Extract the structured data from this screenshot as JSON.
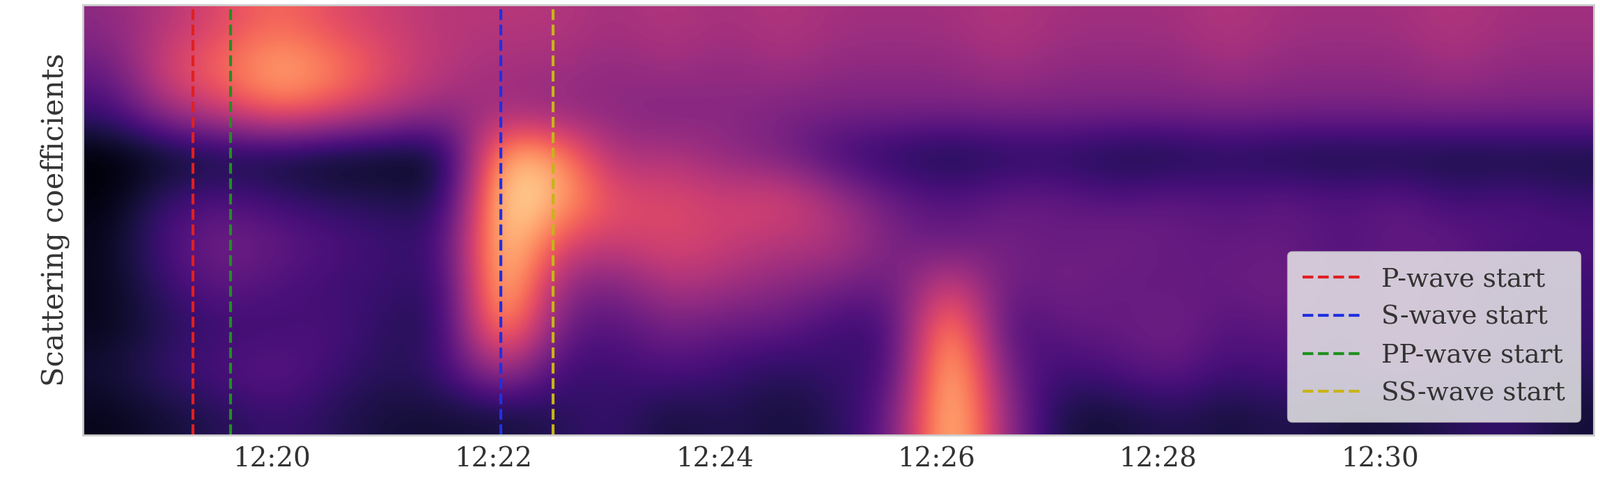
{
  "chart_data": {
    "type": "heatmap",
    "y_label": "Scattering coefficients",
    "tick_labels": "x",
    "color": "magma",
    "legend": "lower right",
    "xlim": [
      738.3,
      751.93
    ],
    "xticks": [
      {
        "value": 740,
        "label": "12:20"
      },
      {
        "value": 742,
        "label": "12:22"
      },
      {
        "value": 744,
        "label": "12:24"
      },
      {
        "value": 746,
        "label": "12:26"
      },
      {
        "value": 748,
        "label": "12:28"
      },
      {
        "value": 750,
        "label": "12:30"
      }
    ],
    "cells": [
      [
        0.05,
        0.1,
        0.15,
        0.2,
        0.15,
        0.1,
        0.1,
        0.1,
        0.15,
        0.2,
        0.1,
        0.15,
        0.1,
        0.15,
        0.3,
        1.0,
        0.4,
        0.1,
        0.1,
        0.15,
        0.1,
        0.15,
        0.1,
        0.1,
        0.15,
        0.2,
        0.1
      ],
      [
        0.1,
        0.2,
        0.25,
        0.3,
        0.2,
        0.15,
        0.2,
        0.5,
        0.2,
        0.2,
        0.25,
        0.2,
        0.15,
        0.2,
        0.2,
        1.0,
        0.3,
        0.2,
        0.25,
        0.3,
        0.2,
        0.25,
        0.2,
        0.3,
        0.2,
        0.2,
        0.15
      ],
      [
        0.05,
        0.15,
        0.2,
        0.2,
        0.25,
        0.15,
        0.15,
        0.9,
        0.3,
        0.25,
        0.35,
        0.3,
        0.3,
        0.2,
        0.2,
        0.9,
        0.2,
        0.3,
        0.3,
        0.35,
        0.25,
        0.3,
        0.2,
        0.3,
        0.25,
        0.2,
        0.2
      ],
      [
        0.05,
        0.2,
        0.3,
        0.25,
        0.2,
        0.2,
        0.15,
        1.0,
        0.4,
        0.35,
        0.5,
        0.45,
        0.4,
        0.35,
        0.3,
        0.6,
        0.3,
        0.35,
        0.3,
        0.3,
        0.3,
        0.35,
        0.25,
        0.3,
        0.25,
        0.2,
        0.2
      ],
      [
        0.05,
        0.25,
        0.35,
        0.3,
        0.25,
        0.2,
        0.2,
        1.0,
        0.6,
        0.55,
        0.6,
        0.55,
        0.5,
        0.5,
        0.35,
        0.3,
        0.35,
        0.3,
        0.35,
        0.3,
        0.3,
        0.3,
        0.25,
        0.3,
        0.3,
        0.25,
        0.25
      ],
      [
        0.02,
        0.2,
        0.25,
        0.2,
        0.15,
        0.15,
        0.1,
        1.0,
        0.85,
        0.6,
        0.6,
        0.55,
        0.6,
        0.45,
        0.3,
        0.25,
        0.3,
        0.3,
        0.25,
        0.3,
        0.25,
        0.3,
        0.25,
        0.3,
        0.2,
        0.25,
        0.2
      ],
      [
        0.0,
        0.05,
        0.1,
        0.08,
        0.05,
        0.05,
        0.05,
        0.9,
        0.8,
        0.45,
        0.5,
        0.4,
        0.35,
        0.2,
        0.15,
        0.1,
        0.15,
        0.15,
        0.1,
        0.1,
        0.15,
        0.1,
        0.1,
        0.1,
        0.1,
        0.1,
        0.1
      ],
      [
        0.2,
        0.45,
        0.55,
        0.7,
        0.6,
        0.5,
        0.4,
        0.45,
        0.4,
        0.4,
        0.35,
        0.4,
        0.35,
        0.35,
        0.35,
        0.35,
        0.35,
        0.35,
        0.35,
        0.35,
        0.35,
        0.35,
        0.35,
        0.35,
        0.35,
        0.35,
        0.35
      ],
      [
        0.3,
        0.6,
        0.7,
        0.85,
        0.75,
        0.6,
        0.5,
        0.45,
        0.45,
        0.4,
        0.45,
        0.4,
        0.45,
        0.4,
        0.4,
        0.4,
        0.45,
        0.4,
        0.4,
        0.4,
        0.45,
        0.4,
        0.4,
        0.4,
        0.45,
        0.4,
        0.4
      ],
      [
        0.4,
        0.5,
        0.6,
        0.7,
        0.6,
        0.55,
        0.5,
        0.5,
        0.5,
        0.45,
        0.5,
        0.45,
        0.5,
        0.45,
        0.45,
        0.45,
        0.5,
        0.45,
        0.45,
        0.45,
        0.5,
        0.45,
        0.45,
        0.45,
        0.5,
        0.45,
        0.45
      ]
    ],
    "series": [
      {
        "name": "P-wave start",
        "x": 739.29,
        "color": "#e02020",
        "line_style": "dashed"
      },
      {
        "name": "S-wave start",
        "x": 742.07,
        "color": "#2030e0",
        "line_style": "dashed"
      },
      {
        "name": "PP-wave start",
        "x": 739.63,
        "color": "#209020",
        "line_style": "dashed"
      },
      {
        "name": "SS-wave start",
        "x": 742.54,
        "color": "#c8b418",
        "line_style": "dashed"
      }
    ]
  }
}
